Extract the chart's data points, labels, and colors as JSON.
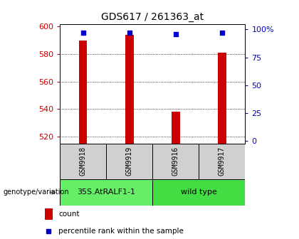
{
  "title": "GDS617 / 261363_at",
  "samples": [
    "GSM9918",
    "GSM9919",
    "GSM9916",
    "GSM9917"
  ],
  "counts": [
    590,
    594,
    538,
    581
  ],
  "percentile_ranks": [
    97,
    97,
    96,
    97
  ],
  "ylim_left": [
    515,
    602
  ],
  "ylim_right": [
    -2,
    105
  ],
  "yticks_left": [
    520,
    540,
    560,
    580,
    600
  ],
  "yticks_right": [
    0,
    25,
    50,
    75,
    100
  ],
  "yticklabels_right": [
    "0",
    "25",
    "50",
    "75",
    "100%"
  ],
  "bar_color": "#cc0000",
  "dot_color": "#0000cc",
  "bar_width": 0.18,
  "groups": [
    {
      "label": "35S.AtRALF1-1",
      "samples": [
        0,
        1
      ],
      "color": "#66ee66"
    },
    {
      "label": "wild type",
      "samples": [
        2,
        3
      ],
      "color": "#44dd44"
    }
  ],
  "genotype_label": "genotype/variation",
  "legend_count_label": "count",
  "legend_percentile_label": "percentile rank within the sample",
  "bg_color": "#ffffff",
  "plot_bg_color": "#ffffff",
  "left_tick_color": "#cc0000",
  "right_tick_color": "#0000cc",
  "sample_box_color": "#d0d0d0",
  "title_fontsize": 10,
  "tick_fontsize": 8,
  "sample_fontsize": 7,
  "group_fontsize": 8,
  "legend_fontsize": 7.5,
  "genotype_fontsize": 7
}
